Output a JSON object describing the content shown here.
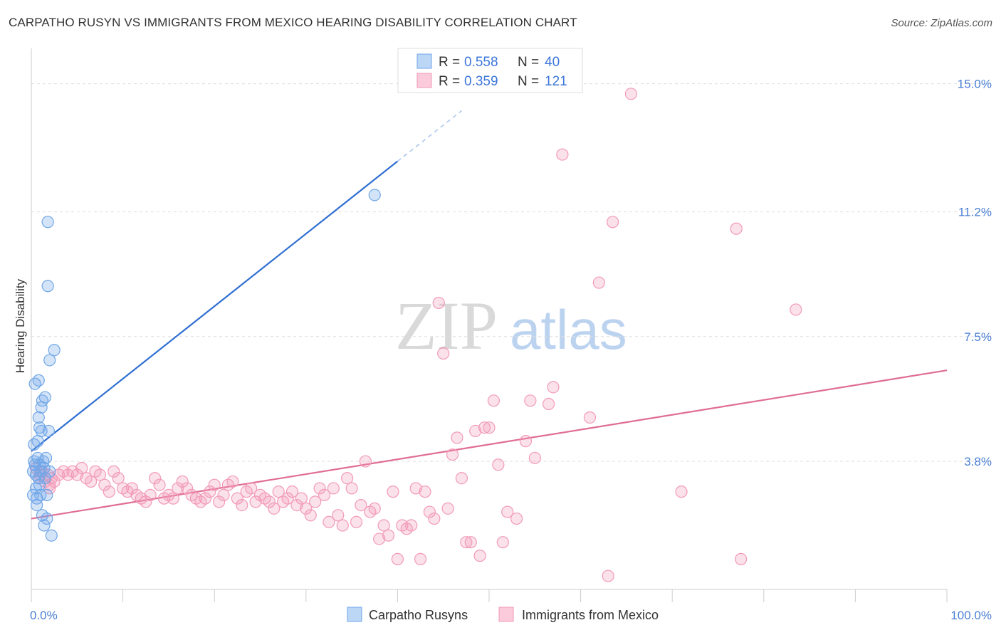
{
  "header": {
    "title": "CARPATHO RUSYN VS IMMIGRANTS FROM MEXICO HEARING DISABILITY CORRELATION CHART",
    "source": "Source: ZipAtlas.com"
  },
  "watermark": {
    "zip": "ZIP",
    "atlas": "atlas"
  },
  "colors": {
    "blue": "#6fa6e8",
    "blue_line": "#2f6fd1",
    "pink": "#f29ab8",
    "pink_line": "#e06c96",
    "grid": "#dddddd",
    "tick_label": "#4a7fd4"
  },
  "legend": {
    "rows": [
      {
        "r_label": "R =",
        "r_value": "0.558",
        "n_label": "N =",
        "n_value": "40"
      },
      {
        "r_label": "R =",
        "r_value": "0.359",
        "n_label": "N =",
        "n_value": "121"
      }
    ]
  },
  "chart_data": {
    "type": "scatter",
    "title": "CARPATHO RUSYN VS IMMIGRANTS FROM MEXICO HEARING DISABILITY CORRELATION CHART",
    "ylabel": "Hearing Disability",
    "xlabel": "",
    "xlim": [
      0,
      100
    ],
    "ylim": [
      0,
      15.9
    ],
    "x_tick_labels": [
      "0.0%",
      "100.0%"
    ],
    "y_ticks": [
      {
        "value": 3.8,
        "label": "3.8%"
      },
      {
        "value": 7.5,
        "label": "7.5%"
      },
      {
        "value": 11.2,
        "label": "11.2%"
      },
      {
        "value": 15.0,
        "label": "15.0%"
      }
    ],
    "grid": true,
    "legend_position": "top-center",
    "series": [
      {
        "name": "Carpatho Rusyns",
        "r": 0.558,
        "n": 40,
        "trend": {
          "x0": 0,
          "y0": 4.1,
          "x1": 40,
          "y1": 12.7,
          "dashed_to_x": 47,
          "dashed_to_y": 14.2
        },
        "points": [
          [
            0.2,
            3.5
          ],
          [
            0.3,
            3.8
          ],
          [
            0.3,
            4.3
          ],
          [
            0.4,
            3.7
          ],
          [
            0.5,
            3.4
          ],
          [
            0.5,
            3.0
          ],
          [
            0.6,
            2.7
          ],
          [
            0.6,
            2.5
          ],
          [
            0.7,
            4.4
          ],
          [
            0.7,
            3.9
          ],
          [
            0.8,
            5.1
          ],
          [
            0.8,
            6.2
          ],
          [
            0.8,
            3.3
          ],
          [
            0.9,
            4.8
          ],
          [
            0.9,
            3.7
          ],
          [
            1.0,
            2.8
          ],
          [
            1.0,
            3.5
          ],
          [
            1.1,
            4.7
          ],
          [
            1.1,
            5.4
          ],
          [
            1.2,
            2.2
          ],
          [
            1.3,
            3.8
          ],
          [
            1.4,
            1.9
          ],
          [
            1.5,
            5.7
          ],
          [
            1.5,
            3.3
          ],
          [
            1.6,
            3.9
          ],
          [
            1.7,
            2.8
          ],
          [
            1.7,
            2.1
          ],
          [
            1.8,
            9.0
          ],
          [
            1.8,
            10.9
          ],
          [
            1.9,
            4.7
          ],
          [
            2.0,
            6.8
          ],
          [
            2.0,
            3.5
          ],
          [
            2.2,
            1.6
          ],
          [
            2.5,
            7.1
          ],
          [
            0.4,
            6.1
          ],
          [
            0.2,
            2.8
          ],
          [
            0.9,
            3.1
          ],
          [
            1.2,
            5.6
          ],
          [
            1.4,
            3.6
          ],
          [
            37.5,
            11.7
          ]
        ]
      },
      {
        "name": "Immigrants from Mexico",
        "r": 0.359,
        "n": 121,
        "trend": {
          "x0": 0,
          "y0": 2.1,
          "x1": 100,
          "y1": 6.5
        },
        "points": [
          [
            0.5,
            3.6
          ],
          [
            0.8,
            3.3
          ],
          [
            1.0,
            3.4
          ],
          [
            1.2,
            3.5
          ],
          [
            1.5,
            3.2
          ],
          [
            1.8,
            3.4
          ],
          [
            2.0,
            3.1
          ],
          [
            2.2,
            3.3
          ],
          [
            2.5,
            3.2
          ],
          [
            3.0,
            3.4
          ],
          [
            3.5,
            3.5
          ],
          [
            4.0,
            3.4
          ],
          [
            4.5,
            3.5
          ],
          [
            5.0,
            3.4
          ],
          [
            5.5,
            3.6
          ],
          [
            6.0,
            3.3
          ],
          [
            6.5,
            3.2
          ],
          [
            7.0,
            3.5
          ],
          [
            7.5,
            3.4
          ],
          [
            8.0,
            3.1
          ],
          [
            8.5,
            2.9
          ],
          [
            9.0,
            3.5
          ],
          [
            9.5,
            3.3
          ],
          [
            10.0,
            3.0
          ],
          [
            10.5,
            2.9
          ],
          [
            11.0,
            3.0
          ],
          [
            11.5,
            2.8
          ],
          [
            12.0,
            2.7
          ],
          [
            12.5,
            2.6
          ],
          [
            13.0,
            2.8
          ],
          [
            13.5,
            3.3
          ],
          [
            14.0,
            3.1
          ],
          [
            14.5,
            2.7
          ],
          [
            15.0,
            2.8
          ],
          [
            15.5,
            2.7
          ],
          [
            16.0,
            3.0
          ],
          [
            16.5,
            3.2
          ],
          [
            17.0,
            3.0
          ],
          [
            17.5,
            2.8
          ],
          [
            18.0,
            2.7
          ],
          [
            18.5,
            2.6
          ],
          [
            19.0,
            2.7
          ],
          [
            19.5,
            2.9
          ],
          [
            20.0,
            3.1
          ],
          [
            20.5,
            2.6
          ],
          [
            21.0,
            2.8
          ],
          [
            21.5,
            3.1
          ],
          [
            22.0,
            3.2
          ],
          [
            22.5,
            2.7
          ],
          [
            23.0,
            2.5
          ],
          [
            23.5,
            2.9
          ],
          [
            24.0,
            3.0
          ],
          [
            24.5,
            2.6
          ],
          [
            25.0,
            2.8
          ],
          [
            25.5,
            2.7
          ],
          [
            26.0,
            2.6
          ],
          [
            26.5,
            2.4
          ],
          [
            27.0,
            2.9
          ],
          [
            27.5,
            2.6
          ],
          [
            28.0,
            2.7
          ],
          [
            28.5,
            2.9
          ],
          [
            29.0,
            2.5
          ],
          [
            29.5,
            2.7
          ],
          [
            30.0,
            2.4
          ],
          [
            30.5,
            2.2
          ],
          [
            31.0,
            2.6
          ],
          [
            31.5,
            3.0
          ],
          [
            32.0,
            2.8
          ],
          [
            32.5,
            2.0
          ],
          [
            33.0,
            3.0
          ],
          [
            33.5,
            2.2
          ],
          [
            34.0,
            1.9
          ],
          [
            34.5,
            3.3
          ],
          [
            35.0,
            3.0
          ],
          [
            35.5,
            2.0
          ],
          [
            36.0,
            2.5
          ],
          [
            36.5,
            3.8
          ],
          [
            37.0,
            2.3
          ],
          [
            37.5,
            2.4
          ],
          [
            38.0,
            1.5
          ],
          [
            38.5,
            1.9
          ],
          [
            39.0,
            1.6
          ],
          [
            39.5,
            2.9
          ],
          [
            40.0,
            0.9
          ],
          [
            40.5,
            1.9
          ],
          [
            41.0,
            1.8
          ],
          [
            41.5,
            1.9
          ],
          [
            42.0,
            3.0
          ],
          [
            42.5,
            0.9
          ],
          [
            43.0,
            2.9
          ],
          [
            43.5,
            2.3
          ],
          [
            44.0,
            2.1
          ],
          [
            44.5,
            8.5
          ],
          [
            45.0,
            7.0
          ],
          [
            45.5,
            2.4
          ],
          [
            46.0,
            4.0
          ],
          [
            46.5,
            4.5
          ],
          [
            47.0,
            3.3
          ],
          [
            47.5,
            1.4
          ],
          [
            48.0,
            1.4
          ],
          [
            48.5,
            4.7
          ],
          [
            49.0,
            1.0
          ],
          [
            49.5,
            4.8
          ],
          [
            50.0,
            4.8
          ],
          [
            50.5,
            5.6
          ],
          [
            51.0,
            3.7
          ],
          [
            51.5,
            1.4
          ],
          [
            52.0,
            2.3
          ],
          [
            53.0,
            2.1
          ],
          [
            54.0,
            4.4
          ],
          [
            54.5,
            5.6
          ],
          [
            55.0,
            3.9
          ],
          [
            56.5,
            5.5
          ],
          [
            57.0,
            6.0
          ],
          [
            58.0,
            12.9
          ],
          [
            61.0,
            5.1
          ],
          [
            62.0,
            9.1
          ],
          [
            63.0,
            0.4
          ],
          [
            63.5,
            10.9
          ],
          [
            65.5,
            14.7
          ],
          [
            71.0,
            2.9
          ],
          [
            77.0,
            10.7
          ],
          [
            77.5,
            0.9
          ],
          [
            83.5,
            8.3
          ],
          [
            2.0,
            3.0
          ]
        ]
      }
    ]
  },
  "bottom_legend": [
    {
      "label": "Carpatho Rusyns"
    },
    {
      "label": "Immigrants from Mexico"
    }
  ]
}
